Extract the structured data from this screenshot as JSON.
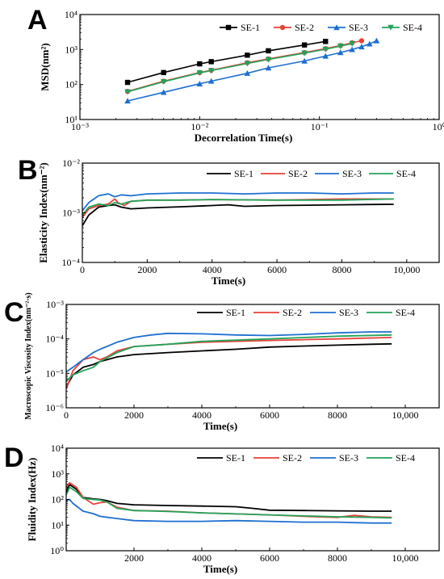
{
  "colors": {
    "SE-1": "#000000",
    "SE-2": "#e8413a",
    "SE-3": "#1f6fd1",
    "SE-4": "#23a35a"
  },
  "chart_data": [
    {
      "panel": "A",
      "type": "line",
      "xscale": "log",
      "yscale": "log",
      "xlim": [
        0.001,
        1
      ],
      "ylim": [
        10,
        10000
      ],
      "xlabel": "Decorrelation Time(s)",
      "ylabel": "MSD(nm²)",
      "xticks": [
        0.001,
        0.01,
        0.1,
        1
      ],
      "xtick_labels": [
        "10⁻³",
        "10⁻²",
        "10⁻¹",
        "10⁰"
      ],
      "yticks": [
        10,
        100,
        1000,
        10000
      ],
      "ytick_labels": [
        "10¹",
        "10²",
        "10³",
        "10⁴"
      ],
      "markers": true,
      "legend": "top-right",
      "series": [
        {
          "name": "SE-1",
          "marker": "square",
          "x": [
            0.0025,
            0.005,
            0.01,
            0.0125,
            0.025,
            0.0375,
            0.075,
            0.1125
          ],
          "y": [
            115,
            220,
            390,
            450,
            690,
            920,
            1350,
            1700
          ]
        },
        {
          "name": "SE-2",
          "marker": "circle",
          "x": [
            0.0025,
            0.005,
            0.01,
            0.0125,
            0.025,
            0.0375,
            0.075,
            0.1125,
            0.15,
            0.1875,
            0.225
          ],
          "y": [
            64,
            125,
            220,
            255,
            420,
            540,
            820,
            1060,
            1300,
            1560,
            1780
          ]
        },
        {
          "name": "SE-3",
          "marker": "triangle",
          "x": [
            0.0025,
            0.005,
            0.01,
            0.0125,
            0.025,
            0.0375,
            0.075,
            0.1125,
            0.15,
            0.1875,
            0.225,
            0.2625,
            0.3
          ],
          "y": [
            34,
            60,
            105,
            125,
            210,
            300,
            470,
            650,
            820,
            1000,
            1200,
            1450,
            1780
          ]
        },
        {
          "name": "SE-4",
          "marker": "down-triangle",
          "x": [
            0.0025,
            0.005,
            0.01,
            0.0125,
            0.025,
            0.0375,
            0.075,
            0.1125,
            0.15,
            0.1875
          ],
          "y": [
            62,
            120,
            215,
            250,
            400,
            520,
            790,
            1020,
            1250,
            1480
          ]
        }
      ]
    },
    {
      "panel": "B",
      "type": "line",
      "yscale": "log",
      "xlim": [
        0,
        11000
      ],
      "ylim": [
        0.0001,
        0.01
      ],
      "xlabel": "Time(s)",
      "ylabel": "Elasticity Index(nm⁻²)",
      "xticks": [
        0,
        2000,
        4000,
        6000,
        8000,
        10000
      ],
      "xtick_labels": [
        "0",
        "2000",
        "4000",
        "6000",
        "8000",
        "10,000"
      ],
      "yticks": [
        0.0001,
        0.001,
        0.01
      ],
      "ytick_labels": [
        "10⁻⁴",
        "10⁻³",
        "10⁻²"
      ],
      "legend": "top-right",
      "series": [
        {
          "name": "SE-1",
          "x": [
            0,
            200,
            500,
            800,
            1000,
            1200,
            1500,
            2000,
            3000,
            4000,
            4500,
            5000,
            6000,
            7000,
            8000,
            9000,
            9600
          ],
          "y": [
            0.00055,
            0.0009,
            0.0013,
            0.0014,
            0.00145,
            0.0013,
            0.0012,
            0.00125,
            0.00132,
            0.0014,
            0.00145,
            0.00135,
            0.0014,
            0.00142,
            0.00145,
            0.00147,
            0.00148
          ]
        },
        {
          "name": "SE-2",
          "x": [
            0,
            200,
            500,
            800,
            1000,
            1100,
            1300,
            1500,
            2000,
            3000,
            4000,
            6000,
            8000,
            9600
          ],
          "y": [
            0.0008,
            0.0012,
            0.0014,
            0.0015,
            0.0019,
            0.0016,
            0.0014,
            0.0017,
            0.0018,
            0.0018,
            0.00185,
            0.0018,
            0.0019,
            0.0019
          ]
        },
        {
          "name": "SE-3",
          "x": [
            0,
            200,
            500,
            800,
            1000,
            1200,
            1500,
            2000,
            3000,
            4000,
            5000,
            6000,
            7000,
            8000,
            9000,
            9600
          ],
          "y": [
            0.0011,
            0.0016,
            0.0022,
            0.0024,
            0.0021,
            0.0023,
            0.0022,
            0.0024,
            0.0025,
            0.0025,
            0.0024,
            0.0025,
            0.0025,
            0.0024,
            0.0025,
            0.0025
          ]
        },
        {
          "name": "SE-4",
          "x": [
            0,
            200,
            500,
            800,
            1000,
            1200,
            1500,
            2000,
            3000,
            4000,
            6000,
            8000,
            9600
          ],
          "y": [
            0.0009,
            0.0013,
            0.0015,
            0.0014,
            0.0016,
            0.0015,
            0.0017,
            0.0018,
            0.0018,
            0.00185,
            0.0018,
            0.0018,
            0.0019
          ]
        }
      ]
    },
    {
      "panel": "C",
      "type": "line",
      "yscale": "log",
      "xlim": [
        0,
        11000
      ],
      "ylim": [
        1e-06,
        0.001
      ],
      "xlabel": "Time(s)",
      "ylabel": "Macroscopic Viscosity Index(nm⁻²·s)",
      "xticks": [
        0,
        2000,
        4000,
        6000,
        8000,
        10000
      ],
      "xtick_labels": [
        "0",
        "2000",
        "4000",
        "6000",
        "8000",
        "10,000"
      ],
      "yticks": [
        1e-06,
        1e-05,
        0.0001,
        0.001
      ],
      "ytick_labels": [
        "10⁻⁶",
        "10⁻⁵",
        "10⁻⁴",
        "10⁻³"
      ],
      "legend": "top-right",
      "series": [
        {
          "name": "SE-1",
          "x": [
            0,
            200,
            500,
            800,
            1000,
            1500,
            2000,
            3000,
            4000,
            5000,
            6000,
            7000,
            8000,
            9000,
            9600
          ],
          "y": [
            4e-06,
            9e-06,
            1.5e-05,
            1.8e-05,
            2.2e-05,
            3e-05,
            3.5e-05,
            4e-05,
            4.5e-05,
            5e-05,
            5.8e-05,
            6.2e-05,
            6.6e-05,
            7e-05,
            7.2e-05
          ]
        },
        {
          "name": "SE-2",
          "x": [
            0,
            200,
            500,
            800,
            1000,
            1200,
            1500,
            2000,
            3000,
            4000,
            6000,
            8000,
            9600
          ],
          "y": [
            3.5e-06,
            1.2e-05,
            2.5e-05,
            3e-05,
            2.5e-05,
            3e-05,
            4.5e-05,
            6e-05,
            7e-05,
            8e-05,
            9e-05,
            0.0001,
            0.00011
          ]
        },
        {
          "name": "SE-3",
          "x": [
            0,
            200,
            500,
            800,
            1000,
            1500,
            2000,
            2500,
            3000,
            4000,
            5000,
            6000,
            7000,
            8000,
            9000,
            9600
          ],
          "y": [
            1.1e-05,
            1.5e-05,
            2.5e-05,
            4e-05,
            5e-05,
            8e-05,
            0.00011,
            0.00013,
            0.000145,
            0.00014,
            0.00013,
            0.000125,
            0.000135,
            0.00015,
            0.00016,
            0.00016
          ]
        },
        {
          "name": "SE-4",
          "x": [
            0,
            200,
            500,
            800,
            1000,
            1500,
            2000,
            3000,
            4000,
            6000,
            8000,
            9600
          ],
          "y": [
            6e-06,
            9e-06,
            1.2e-05,
            1.5e-05,
            2.2e-05,
            4e-05,
            6e-05,
            7e-05,
            8.5e-05,
            0.0001,
            0.00012,
            0.00013
          ]
        }
      ]
    },
    {
      "panel": "D",
      "type": "line",
      "yscale": "log",
      "xlim": [
        0,
        11000
      ],
      "ylim": [
        1,
        10000
      ],
      "xlabel": "Time(s)",
      "ylabel": "Fluidity Index(Hz)",
      "xticks": [
        2000,
        4000,
        6000,
        8000,
        10000
      ],
      "xtick_labels": [
        "2000",
        "4000",
        "6000",
        "8000",
        "10,000"
      ],
      "yticks": [
        1,
        10,
        100,
        1000,
        10000
      ],
      "ytick_labels": [
        "10⁰",
        "10¹",
        "10²",
        "10³",
        "10⁴"
      ],
      "legend": "top-right",
      "series": [
        {
          "name": "SE-1",
          "x": [
            0,
            100,
            300,
            500,
            800,
            1000,
            1200,
            1500,
            2000,
            3000,
            4000,
            5000,
            5500,
            6000,
            7000,
            8000,
            9000,
            9600
          ],
          "y": [
            200,
            380,
            250,
            120,
            105,
            100,
            90,
            70,
            62,
            58,
            55,
            52,
            45,
            38,
            37,
            36,
            35,
            35
          ]
        },
        {
          "name": "SE-2",
          "x": [
            0,
            100,
            300,
            500,
            800,
            1000,
            1200,
            1500,
            2000,
            3000,
            4000,
            6000,
            7000,
            8000,
            8500,
            9000,
            9600
          ],
          "y": [
            300,
            450,
            300,
            120,
            65,
            75,
            80,
            50,
            37,
            35,
            30,
            25,
            22,
            20,
            24,
            21,
            20
          ]
        },
        {
          "name": "SE-3",
          "x": [
            0,
            100,
            200,
            500,
            800,
            1000,
            1500,
            2000,
            3000,
            4000,
            5000,
            6000,
            7000,
            8000,
            9000,
            9600
          ],
          "y": [
            90,
            100,
            70,
            35,
            28,
            22,
            18,
            15,
            14,
            14,
            15,
            14,
            13,
            13,
            12,
            12
          ]
        },
        {
          "name": "SE-4",
          "x": [
            0,
            100,
            300,
            500,
            800,
            1000,
            1200,
            1500,
            2000,
            3000,
            4000,
            6000,
            8000,
            9000,
            9600
          ],
          "y": [
            150,
            300,
            200,
            110,
            100,
            95,
            80,
            45,
            37,
            34,
            30,
            25,
            21,
            20,
            19
          ]
        }
      ]
    }
  ]
}
